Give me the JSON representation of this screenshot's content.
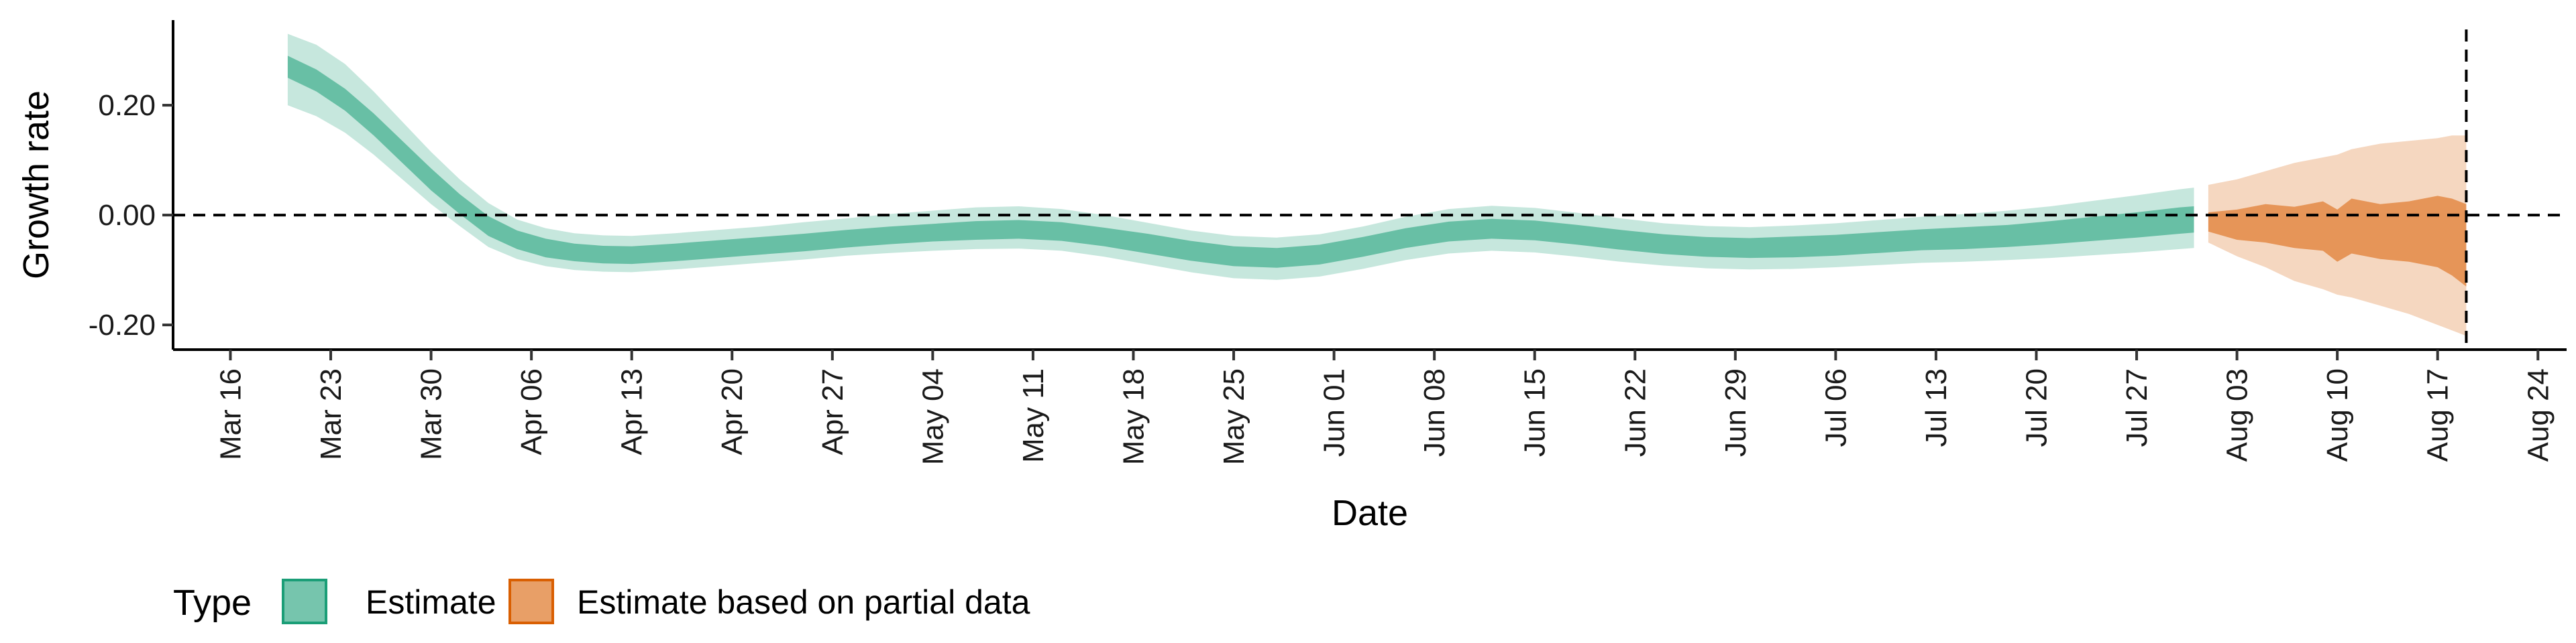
{
  "chart_data": {
    "type": "area",
    "xlabel": "Date",
    "ylabel": "Growth rate",
    "x_tick_labels": [
      "Mar 16",
      "Mar 23",
      "Mar 30",
      "Apr 06",
      "Apr 13",
      "Apr 20",
      "Apr 27",
      "May 04",
      "May 11",
      "May 18",
      "May 25",
      "Jun 01",
      "Jun 08",
      "Jun 15",
      "Jun 22",
      "Jun 29",
      "Jul 06",
      "Jul 13",
      "Jul 20",
      "Jul 27",
      "Aug 03",
      "Aug 10",
      "Aug 17",
      "Aug 24"
    ],
    "x_tick_dates": [
      "2020-03-16",
      "2020-03-23",
      "2020-03-30",
      "2020-04-06",
      "2020-04-13",
      "2020-04-20",
      "2020-04-27",
      "2020-05-04",
      "2020-05-11",
      "2020-05-18",
      "2020-05-25",
      "2020-06-01",
      "2020-06-08",
      "2020-06-15",
      "2020-06-22",
      "2020-06-29",
      "2020-07-06",
      "2020-07-13",
      "2020-07-20",
      "2020-07-27",
      "2020-08-03",
      "2020-08-10",
      "2020-08-17",
      "2020-08-24"
    ],
    "y_tick_labels": [
      "-0.20",
      "0.00",
      "0.20"
    ],
    "y_tick_values": [
      -0.2,
      0.0,
      0.2
    ],
    "xlim": [
      "2020-03-12",
      "2020-08-26"
    ],
    "ylim": [
      -0.245,
      0.355
    ],
    "hline_y": 0.0,
    "vline_x": "2020-08-19",
    "legend_title": "Type",
    "legend_position": "bottom-left",
    "series": [
      {
        "name": "Estimate",
        "color": "#1b9e77",
        "dates": [
          "2020-03-20",
          "2020-03-22",
          "2020-03-24",
          "2020-03-26",
          "2020-03-28",
          "2020-03-30",
          "2020-04-01",
          "2020-04-03",
          "2020-04-05",
          "2020-04-07",
          "2020-04-09",
          "2020-04-11",
          "2020-04-13",
          "2020-04-16",
          "2020-04-19",
          "2020-04-22",
          "2020-04-25",
          "2020-04-28",
          "2020-05-01",
          "2020-05-04",
          "2020-05-07",
          "2020-05-10",
          "2020-05-13",
          "2020-05-16",
          "2020-05-19",
          "2020-05-22",
          "2020-05-25",
          "2020-05-28",
          "2020-05-31",
          "2020-06-03",
          "2020-06-06",
          "2020-06-09",
          "2020-06-12",
          "2020-06-15",
          "2020-06-18",
          "2020-06-21",
          "2020-06-24",
          "2020-06-27",
          "2020-06-30",
          "2020-07-03",
          "2020-07-06",
          "2020-07-09",
          "2020-07-12",
          "2020-07-15",
          "2020-07-18",
          "2020-07-21",
          "2020-07-24",
          "2020-07-27",
          "2020-07-30",
          "2020-07-31"
        ],
        "median": [
          0.27,
          0.245,
          0.21,
          0.165,
          0.115,
          0.065,
          0.02,
          -0.02,
          -0.045,
          -0.06,
          -0.068,
          -0.072,
          -0.073,
          -0.068,
          -0.062,
          -0.056,
          -0.05,
          -0.043,
          -0.037,
          -0.032,
          -0.028,
          -0.026,
          -0.03,
          -0.04,
          -0.052,
          -0.065,
          -0.075,
          -0.078,
          -0.072,
          -0.058,
          -0.042,
          -0.03,
          -0.025,
          -0.028,
          -0.036,
          -0.045,
          -0.053,
          -0.058,
          -0.06,
          -0.058,
          -0.055,
          -0.05,
          -0.045,
          -0.042,
          -0.038,
          -0.032,
          -0.025,
          -0.018,
          -0.01,
          -0.008
        ],
        "lower_50": [
          0.25,
          0.225,
          0.19,
          0.145,
          0.095,
          0.045,
          0.002,
          -0.038,
          -0.062,
          -0.077,
          -0.084,
          -0.088,
          -0.089,
          -0.084,
          -0.078,
          -0.072,
          -0.066,
          -0.059,
          -0.053,
          -0.048,
          -0.045,
          -0.043,
          -0.047,
          -0.057,
          -0.07,
          -0.083,
          -0.093,
          -0.096,
          -0.09,
          -0.076,
          -0.06,
          -0.048,
          -0.043,
          -0.046,
          -0.054,
          -0.063,
          -0.071,
          -0.076,
          -0.078,
          -0.077,
          -0.074,
          -0.069,
          -0.064,
          -0.062,
          -0.058,
          -0.053,
          -0.047,
          -0.041,
          -0.034,
          -0.032
        ],
        "upper_50": [
          0.29,
          0.265,
          0.23,
          0.185,
          0.135,
          0.085,
          0.038,
          -0.002,
          -0.028,
          -0.043,
          -0.052,
          -0.056,
          -0.057,
          -0.052,
          -0.046,
          -0.04,
          -0.034,
          -0.027,
          -0.021,
          -0.016,
          -0.011,
          -0.009,
          -0.013,
          -0.023,
          -0.034,
          -0.047,
          -0.057,
          -0.06,
          -0.054,
          -0.04,
          -0.024,
          -0.012,
          -0.007,
          -0.01,
          -0.018,
          -0.027,
          -0.035,
          -0.04,
          -0.042,
          -0.039,
          -0.036,
          -0.031,
          -0.026,
          -0.022,
          -0.018,
          -0.011,
          -0.003,
          0.005,
          0.014,
          0.016
        ],
        "lower_90": [
          0.2,
          0.18,
          0.15,
          0.11,
          0.065,
          0.02,
          -0.02,
          -0.058,
          -0.08,
          -0.093,
          -0.1,
          -0.103,
          -0.104,
          -0.099,
          -0.093,
          -0.087,
          -0.081,
          -0.074,
          -0.069,
          -0.065,
          -0.062,
          -0.061,
          -0.065,
          -0.076,
          -0.09,
          -0.104,
          -0.115,
          -0.118,
          -0.112,
          -0.098,
          -0.082,
          -0.07,
          -0.065,
          -0.068,
          -0.076,
          -0.085,
          -0.092,
          -0.097,
          -0.099,
          -0.098,
          -0.095,
          -0.091,
          -0.087,
          -0.085,
          -0.082,
          -0.078,
          -0.073,
          -0.068,
          -0.062,
          -0.06
        ],
        "upper_90": [
          0.33,
          0.31,
          0.275,
          0.225,
          0.17,
          0.115,
          0.065,
          0.022,
          -0.008,
          -0.024,
          -0.033,
          -0.037,
          -0.038,
          -0.033,
          -0.027,
          -0.021,
          -0.013,
          -0.006,
          0.002,
          0.008,
          0.014,
          0.016,
          0.011,
          0.0,
          -0.014,
          -0.028,
          -0.038,
          -0.041,
          -0.035,
          -0.021,
          -0.003,
          0.011,
          0.017,
          0.013,
          0.004,
          -0.006,
          -0.015,
          -0.02,
          -0.022,
          -0.019,
          -0.015,
          -0.009,
          -0.003,
          0.002,
          0.008,
          0.016,
          0.026,
          0.036,
          0.047,
          0.05
        ]
      },
      {
        "name": "Estimate based on partial data",
        "color": "#d95f02",
        "dates": [
          "2020-08-01",
          "2020-08-03",
          "2020-08-05",
          "2020-08-07",
          "2020-08-09",
          "2020-08-10",
          "2020-08-11",
          "2020-08-13",
          "2020-08-15",
          "2020-08-17",
          "2020-08-18",
          "2020-08-19"
        ],
        "median": [
          -0.01,
          -0.015,
          -0.01,
          -0.02,
          -0.015,
          -0.03,
          -0.02,
          -0.025,
          -0.02,
          -0.03,
          -0.045,
          -0.06
        ],
        "lower_50": [
          -0.03,
          -0.045,
          -0.05,
          -0.06,
          -0.065,
          -0.085,
          -0.07,
          -0.08,
          -0.085,
          -0.095,
          -0.11,
          -0.13
        ],
        "upper_50": [
          0.005,
          0.01,
          0.02,
          0.015,
          0.025,
          0.01,
          0.03,
          0.02,
          0.025,
          0.035,
          0.03,
          0.02
        ],
        "lower_90": [
          -0.05,
          -0.075,
          -0.095,
          -0.12,
          -0.135,
          -0.145,
          -0.15,
          -0.165,
          -0.18,
          -0.2,
          -0.21,
          -0.22
        ],
        "upper_90": [
          0.055,
          0.065,
          0.08,
          0.095,
          0.105,
          0.11,
          0.12,
          0.13,
          0.135,
          0.14,
          0.145,
          0.145
        ]
      }
    ]
  }
}
